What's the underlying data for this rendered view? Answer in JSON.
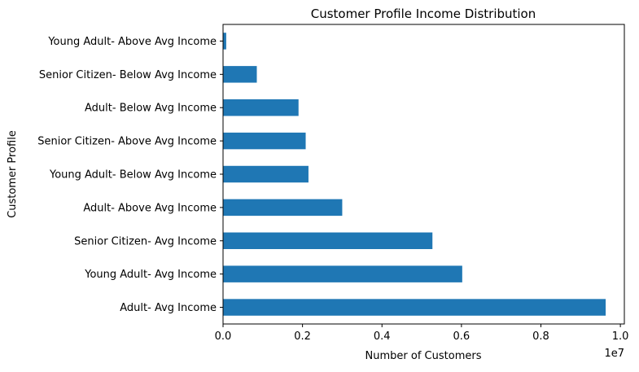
{
  "chart_data": {
    "type": "bar",
    "orientation": "horizontal",
    "title": "Customer Profile Income Distribution",
    "xlabel": "Number of Customers",
    "ylabel": "Customer Profile",
    "x_offset_label": "1e7",
    "xlim": [
      0,
      1.01
    ],
    "x_ticks": [
      0.0,
      0.2,
      0.4,
      0.6,
      0.8,
      1.0
    ],
    "x_tick_labels": [
      "0.0",
      "0.2",
      "0.4",
      "0.6",
      "0.8",
      "1.0"
    ],
    "categories": [
      "Adult- Avg Income",
      "Young Adult- Avg Income",
      "Senior Citizen- Avg Income",
      "Adult- Above Avg Income",
      "Young Adult- Below Avg Income",
      "Senior Citizen- Above Avg Income",
      "Adult- Below Avg Income",
      "Senior Citizen- Below Avg Income",
      "Young Adult- Above Avg Income"
    ],
    "values": [
      0.963,
      0.602,
      0.527,
      0.3,
      0.215,
      0.208,
      0.19,
      0.085,
      0.008
    ],
    "grid": false,
    "legend": "none",
    "bar_color": "#1f77b4"
  }
}
